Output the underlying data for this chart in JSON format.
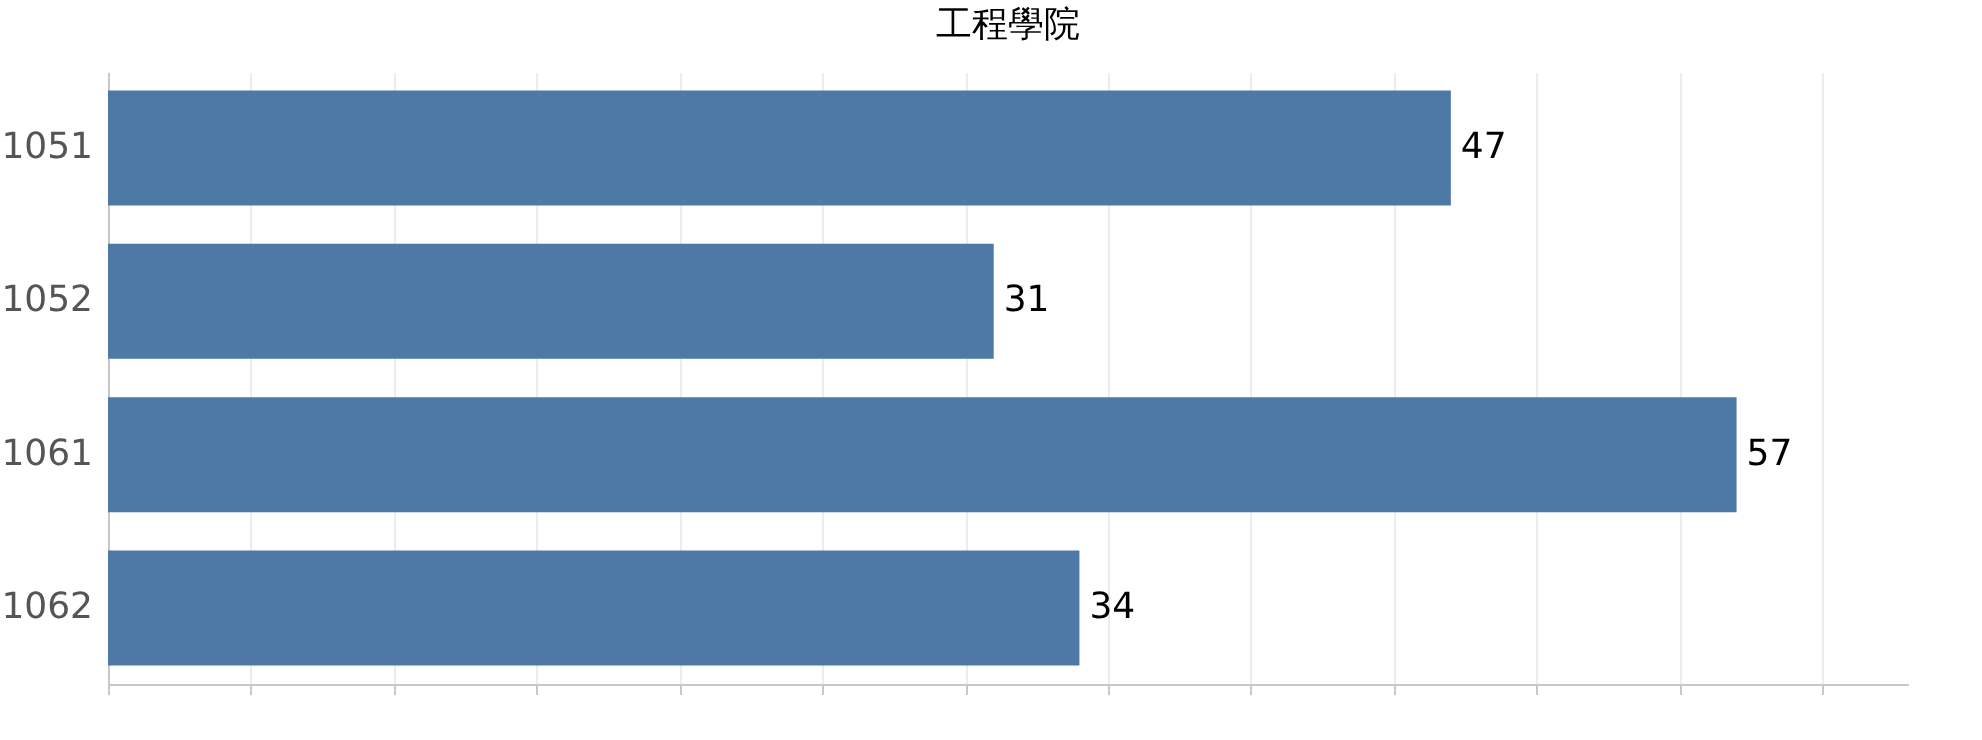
{
  "chart_data": {
    "type": "bar",
    "orientation": "horizontal",
    "title": "工程學院",
    "categories": [
      "1051",
      "1052",
      "1061",
      "1062"
    ],
    "values": [
      47,
      31,
      57,
      34
    ],
    "color": "#4e78a6",
    "data_labels": true,
    "xlim": [
      0,
      63
    ],
    "xticks": [
      {
        "value": 0,
        "label": null
      },
      {
        "value": 5,
        "label": null
      },
      {
        "value": 10,
        "label": null
      },
      {
        "value": 15,
        "label": null
      },
      {
        "value": 20,
        "label": null
      },
      {
        "value": 25,
        "label": null
      },
      {
        "value": 30,
        "label": null
      },
      {
        "value": 35,
        "label": null
      },
      {
        "value": 40,
        "label": null
      },
      {
        "value": 45,
        "label": null
      },
      {
        "value": 50,
        "label": null
      },
      {
        "value": 55,
        "label": null
      },
      {
        "value": 60,
        "label": null
      }
    ],
    "grid": "x",
    "tick_labels": "y"
  }
}
